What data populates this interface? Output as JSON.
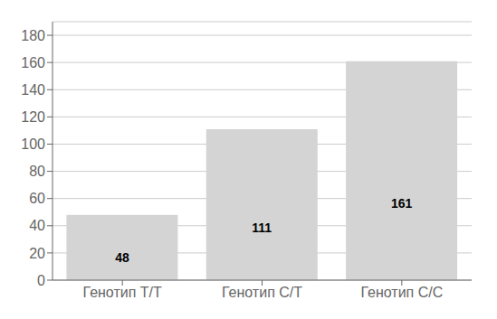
{
  "chart_data": {
    "type": "bar",
    "categories": [
      "Генотип T/T",
      "Генотип C/T",
      "Генотип C/C"
    ],
    "values": [
      48,
      111,
      161
    ],
    "color": "#d4d4d4",
    "ylim": [
      0,
      190
    ],
    "yticks": [
      0,
      20,
      40,
      60,
      80,
      100,
      120,
      140,
      160,
      180
    ],
    "grid": true,
    "data_labels": true
  }
}
